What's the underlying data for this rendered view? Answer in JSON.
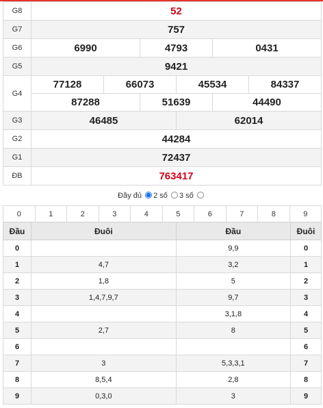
{
  "results": [
    {
      "label": "G8",
      "values": [
        "52"
      ],
      "red": true
    },
    {
      "label": "G7",
      "values": [
        "757"
      ]
    },
    {
      "label": "G6",
      "values": [
        "6990",
        "4793",
        "0431"
      ]
    },
    {
      "label": "G5",
      "values": [
        "9421"
      ]
    },
    {
      "label": "G4",
      "values": [
        "77128",
        "66073",
        "45534",
        "84337",
        "87288",
        "51639",
        "44490"
      ]
    },
    {
      "label": "G3",
      "values": [
        "46485",
        "62014"
      ]
    },
    {
      "label": "G2",
      "values": [
        "44284"
      ]
    },
    {
      "label": "G1",
      "values": [
        "72437"
      ]
    },
    {
      "label": "ĐB",
      "values": [
        "763417"
      ],
      "red": true
    }
  ],
  "options": {
    "full": "Đầy đủ",
    "two": "2 số",
    "three": "3 số",
    "selected": "two"
  },
  "digits": [
    "0",
    "1",
    "2",
    "3",
    "4",
    "5",
    "6",
    "7",
    "8",
    "9"
  ],
  "loto": {
    "headers": [
      "Đầu",
      "Đuôi",
      "Đầu",
      "Đuôi"
    ],
    "rows": [
      {
        "dau": "0",
        "duoi": "",
        "dau2": "9,9",
        "duoi2": "0"
      },
      {
        "dau": "1",
        "duoi": "4,7",
        "dau2": "3,2",
        "duoi2": "1"
      },
      {
        "dau": "2",
        "duoi": "1,8",
        "dau2": "5",
        "duoi2": "2"
      },
      {
        "dau": "3",
        "duoi": "1,4,7,9,7",
        "dau2": "9,7",
        "duoi2": "3"
      },
      {
        "dau": "4",
        "duoi": "",
        "dau2": "3,1,8",
        "duoi2": "4"
      },
      {
        "dau": "5",
        "duoi": "2,7",
        "dau2": "8",
        "duoi2": "5"
      },
      {
        "dau": "6",
        "duoi": "",
        "dau2": "",
        "duoi2": "6"
      },
      {
        "dau": "7",
        "duoi": "3",
        "dau2": "5,3,3,1",
        "duoi2": "7"
      },
      {
        "dau": "8",
        "duoi": "8,5,4",
        "dau2": "2,8",
        "duoi2": "8"
      },
      {
        "dau": "9",
        "duoi": "0,3,0",
        "dau2": "3",
        "duoi2": "9"
      }
    ]
  },
  "colors": {
    "accent": "#e5322d",
    "prize_red": "#d0021b",
    "radio": "#1a73e8"
  }
}
